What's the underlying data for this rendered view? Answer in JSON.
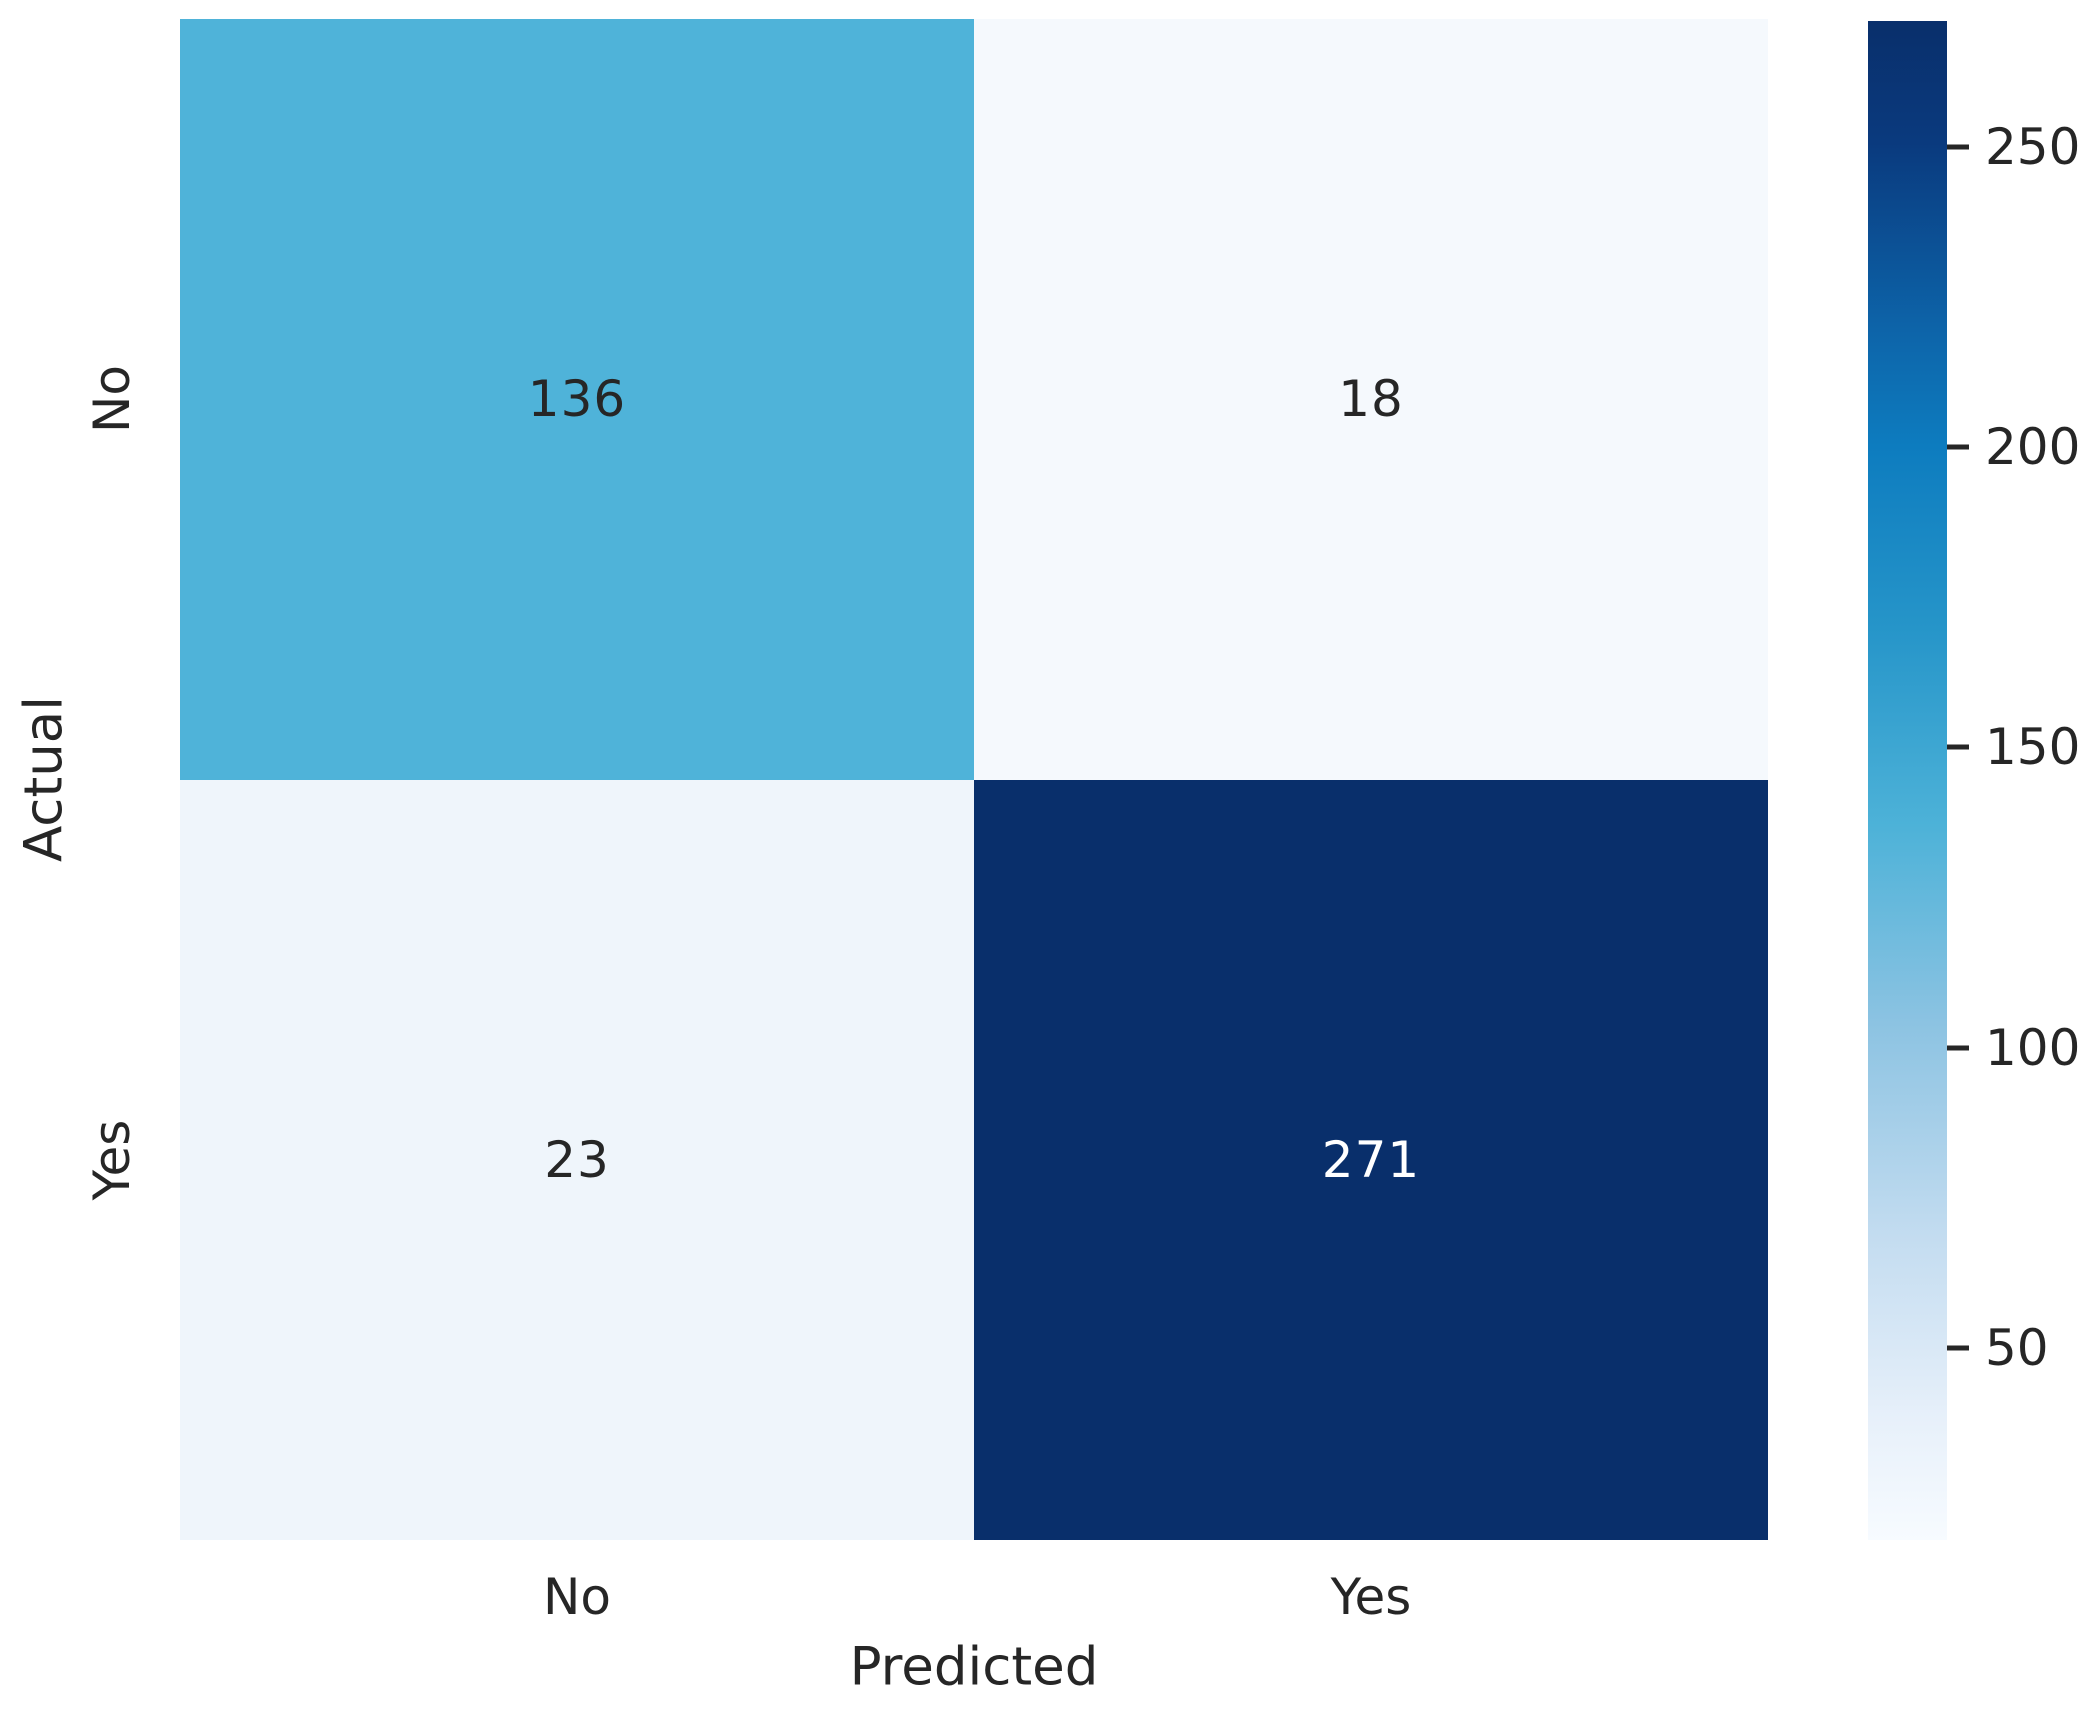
{
  "chart_data": {
    "type": "heatmap",
    "title": "",
    "xlabel": "Predicted",
    "ylabel": "Actual",
    "x_categories": [
      "No",
      "Yes"
    ],
    "y_categories": [
      "No",
      "Yes"
    ],
    "matrix": [
      [
        136,
        18
      ],
      [
        23,
        271
      ]
    ],
    "vmin": 18,
    "vmax": 271,
    "cell_colors": [
      [
        "#4fb3d9",
        "#f5f9fd"
      ],
      [
        "#eff5fb",
        "#092f6b"
      ]
    ],
    "cell_text_colors": [
      [
        "#262626",
        "#262626"
      ],
      [
        "#262626",
        "#ffffff"
      ]
    ],
    "colorbar": {
      "position": "right",
      "ticks": [
        250,
        200,
        150,
        100,
        50
      ],
      "gradient_top": "#092f6b",
      "gradient_bottom": "#f7fbff"
    },
    "layout": {
      "grid": "off",
      "legend": "none",
      "background": "#ffffff",
      "text_color": "#262626"
    }
  }
}
